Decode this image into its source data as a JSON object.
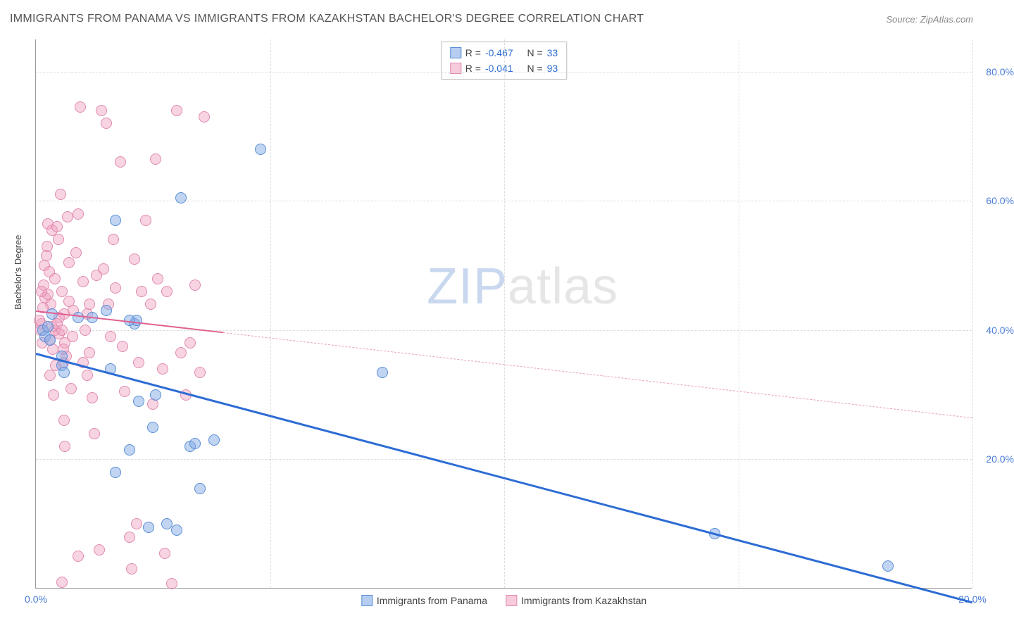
{
  "title": "IMMIGRANTS FROM PANAMA VS IMMIGRANTS FROM KAZAKHSTAN BACHELOR'S DEGREE CORRELATION CHART",
  "source": "Source: ZipAtlas.com",
  "y_axis_label": "Bachelor's Degree",
  "watermark": {
    "a": "ZIP",
    "b": "atlas"
  },
  "chart": {
    "type": "scatter",
    "xlim": [
      0,
      20
    ],
    "ylim": [
      0,
      85
    ],
    "yticks": [
      20,
      40,
      60,
      80
    ],
    "ytick_labels": [
      "20.0%",
      "40.0%",
      "60.0%",
      "80.0%"
    ],
    "xticks": [
      0,
      20
    ],
    "xtick_labels": [
      "0.0%",
      "20.0%"
    ],
    "xgrid_at": [
      5,
      10,
      15,
      20
    ],
    "grid_color": "#dddddd",
    "background_color": "#ffffff",
    "series_blue": {
      "label": "Immigrants from Panama",
      "color_fill": "rgba(132,172,230,0.5)",
      "color_stroke": "#5a8ed6",
      "trend_color": "#2d6cd4",
      "R": "-0.467",
      "N": "33",
      "trend": {
        "x1": 0,
        "y1": 36.5,
        "x2": 20,
        "y2": -2
      },
      "points": [
        [
          0.15,
          40.0
        ],
        [
          0.2,
          39.0
        ],
        [
          0.25,
          40.5
        ],
        [
          0.3,
          38.5
        ],
        [
          0.35,
          42.5
        ],
        [
          0.55,
          34.5
        ],
        [
          0.55,
          36.0
        ],
        [
          0.6,
          33.5
        ],
        [
          0.9,
          42.0
        ],
        [
          1.2,
          42.0
        ],
        [
          1.7,
          57.0
        ],
        [
          2.1,
          41.0
        ],
        [
          2.15,
          41.5
        ],
        [
          1.6,
          34.0
        ],
        [
          1.7,
          18.0
        ],
        [
          2.0,
          21.5
        ],
        [
          2.2,
          29.0
        ],
        [
          2.4,
          9.5
        ],
        [
          2.5,
          25.0
        ],
        [
          2.55,
          30.0
        ],
        [
          2.8,
          10.0
        ],
        [
          3.0,
          9.0
        ],
        [
          3.1,
          60.5
        ],
        [
          3.3,
          22.0
        ],
        [
          3.4,
          22.5
        ],
        [
          3.5,
          15.5
        ],
        [
          3.8,
          23.0
        ],
        [
          4.8,
          68.0
        ],
        [
          7.4,
          33.5
        ],
        [
          14.5,
          8.5
        ],
        [
          18.2,
          3.5
        ],
        [
          2.0,
          41.5
        ],
        [
          1.5,
          43.0
        ]
      ]
    },
    "series_pink": {
      "label": "Immigrants from Kazakhstan",
      "color_fill": "rgba(240,160,190,0.45)",
      "color_stroke": "#e08ab0",
      "trend_color": "#e06090",
      "trend_dash_color": "#e8a0b8",
      "R": "-0.041",
      "N": "93",
      "trend": {
        "x1": 0,
        "y1": 43.0,
        "x2": 20,
        "y2": 26.5,
        "solid_until_x": 4.0
      },
      "points": [
        [
          0.1,
          40.0
        ],
        [
          0.12,
          41.0
        ],
        [
          0.14,
          38.0
        ],
        [
          0.16,
          47.0
        ],
        [
          0.18,
          50.0
        ],
        [
          0.2,
          45.0
        ],
        [
          0.22,
          51.5
        ],
        [
          0.24,
          53.0
        ],
        [
          0.26,
          56.5
        ],
        [
          0.28,
          49.0
        ],
        [
          0.3,
          33.0
        ],
        [
          0.32,
          44.0
        ],
        [
          0.34,
          55.5
        ],
        [
          0.36,
          37.0
        ],
        [
          0.38,
          30.0
        ],
        [
          0.4,
          48.0
        ],
        [
          0.42,
          34.5
        ],
        [
          0.45,
          56.0
        ],
        [
          0.48,
          54.0
        ],
        [
          0.5,
          42.0
        ],
        [
          0.52,
          61.0
        ],
        [
          0.55,
          46.0
        ],
        [
          0.58,
          35.0
        ],
        [
          0.6,
          26.0
        ],
        [
          0.62,
          22.0
        ],
        [
          0.65,
          36.0
        ],
        [
          0.68,
          57.5
        ],
        [
          0.7,
          50.5
        ],
        [
          0.75,
          31.0
        ],
        [
          0.78,
          39.0
        ],
        [
          0.8,
          43.0
        ],
        [
          0.85,
          52.0
        ],
        [
          0.9,
          58.0
        ],
        [
          0.95,
          74.5
        ],
        [
          1.0,
          47.5
        ],
        [
          1.05,
          40.0
        ],
        [
          1.1,
          33.0
        ],
        [
          1.15,
          36.5
        ],
        [
          1.2,
          29.5
        ],
        [
          1.25,
          24.0
        ],
        [
          1.3,
          48.5
        ],
        [
          1.35,
          6.0
        ],
        [
          1.4,
          74.0
        ],
        [
          1.45,
          49.5
        ],
        [
          1.5,
          72.0
        ],
        [
          1.55,
          44.0
        ],
        [
          1.6,
          39.0
        ],
        [
          1.65,
          54.0
        ],
        [
          1.7,
          46.5
        ],
        [
          1.8,
          66.0
        ],
        [
          1.85,
          37.5
        ],
        [
          1.9,
          30.5
        ],
        [
          2.0,
          8.0
        ],
        [
          2.05,
          3.0
        ],
        [
          2.1,
          51.0
        ],
        [
          2.15,
          10.0
        ],
        [
          2.2,
          35.0
        ],
        [
          2.25,
          46.0
        ],
        [
          2.35,
          57.0
        ],
        [
          2.45,
          44.0
        ],
        [
          2.5,
          28.5
        ],
        [
          2.55,
          66.5
        ],
        [
          2.6,
          48.0
        ],
        [
          2.7,
          34.0
        ],
        [
          2.75,
          5.5
        ],
        [
          2.8,
          46.0
        ],
        [
          2.9,
          0.8
        ],
        [
          3.0,
          74.0
        ],
        [
          3.1,
          36.5
        ],
        [
          3.2,
          30.0
        ],
        [
          3.3,
          38.0
        ],
        [
          3.4,
          47.0
        ],
        [
          3.5,
          33.5
        ],
        [
          3.6,
          73.0
        ],
        [
          0.4,
          40.0
        ],
        [
          0.55,
          1.0
        ],
        [
          0.5,
          39.5
        ],
        [
          0.6,
          42.5
        ],
        [
          0.7,
          44.5
        ],
        [
          0.15,
          43.5
        ],
        [
          0.25,
          45.5
        ],
        [
          0.3,
          38.5
        ],
        [
          0.35,
          40.5
        ],
        [
          0.12,
          46.0
        ],
        [
          0.08,
          41.5
        ],
        [
          0.45,
          41.0
        ],
        [
          0.55,
          40.0
        ],
        [
          0.62,
          38.0
        ],
        [
          1.0,
          35.0
        ],
        [
          1.1,
          42.5
        ],
        [
          1.15,
          44.0
        ],
        [
          0.9,
          5.0
        ],
        [
          0.58,
          37.0
        ]
      ]
    }
  },
  "stats_legend": {
    "label_R": "R =",
    "label_N": "N ="
  },
  "bottom_legend": {
    "panama": "Immigrants from Panama",
    "kazakhstan": "Immigrants from Kazakhstan"
  }
}
